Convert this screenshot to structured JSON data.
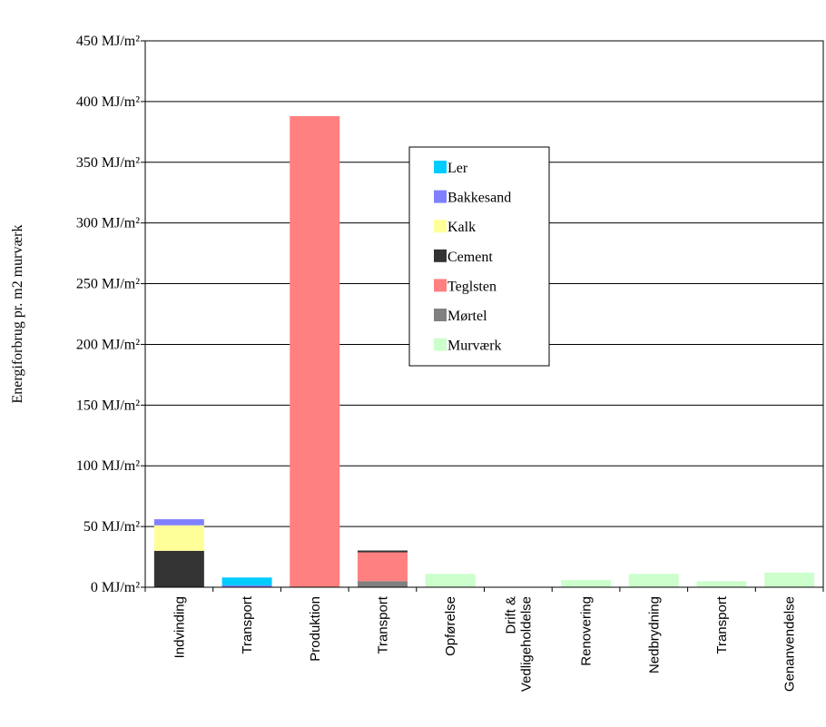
{
  "chart_data": {
    "type": "bar",
    "stacked": true,
    "ylabel": "Energiforbrug pr. m2 murværk",
    "xlabel": "",
    "ylim": [
      0,
      450
    ],
    "y_ticks": [
      0,
      50,
      100,
      150,
      200,
      250,
      300,
      350,
      400,
      450
    ],
    "y_tick_labels": [
      "0 MJ/m²",
      "50 MJ/m²",
      "100 MJ/m²",
      "150 MJ/m²",
      "200 MJ/m²",
      "250 MJ/m²",
      "300 MJ/m²",
      "350 MJ/m²",
      "400 MJ/m²",
      "450 MJ/m²"
    ],
    "grid": true,
    "legend_position": "center-right",
    "categories": [
      [
        "Indvinding"
      ],
      [
        "Transport"
      ],
      [
        "Produktion"
      ],
      [
        "Transport"
      ],
      [
        "Opførelse"
      ],
      [
        "Drift &",
        "Vedligeholdelse"
      ],
      [
        "Renovering"
      ],
      [
        "Nedbrydning"
      ],
      [
        "Transport"
      ],
      [
        "Genanvendelse"
      ]
    ],
    "series": [
      {
        "name": "Mørtel",
        "color": "#808080",
        "values": [
          0,
          0,
          0,
          5,
          0,
          0,
          0,
          0,
          0,
          0
        ]
      },
      {
        "name": "Cement",
        "color": "#333333",
        "values": [
          30,
          0,
          0,
          0,
          0,
          0,
          0,
          0,
          0,
          0
        ]
      },
      {
        "name": "Kalk",
        "color": "#ffff99",
        "values": [
          21,
          0,
          0,
          0,
          0,
          0,
          0,
          0,
          0,
          0
        ]
      },
      {
        "name": "Bakkesand",
        "color": "#8080ff",
        "values": [
          5,
          1.5,
          0,
          0,
          0,
          0,
          0,
          0,
          0,
          0
        ]
      },
      {
        "name": "Ler",
        "color": "#00ccff",
        "values": [
          0,
          6.5,
          0,
          0,
          0,
          0,
          0,
          0,
          0,
          0
        ]
      },
      {
        "name": "Teglsten",
        "color": "#ff8080",
        "values": [
          0,
          0,
          388,
          24,
          0,
          0,
          0,
          0,
          0,
          0
        ]
      },
      {
        "name": "Murværk",
        "color": "#ccffcc",
        "values": [
          0,
          0,
          0,
          0,
          11,
          0,
          6,
          11,
          5,
          12
        ]
      }
    ],
    "legend_order": [
      "Ler",
      "Bakkesand",
      "Kalk",
      "Cement",
      "Teglsten",
      "Mørtel",
      "Murværk"
    ],
    "extra_marks": [
      {
        "category_index": 3,
        "value": 29.5,
        "color": "#333333",
        "note_shown_as": "thin cap line"
      }
    ]
  }
}
